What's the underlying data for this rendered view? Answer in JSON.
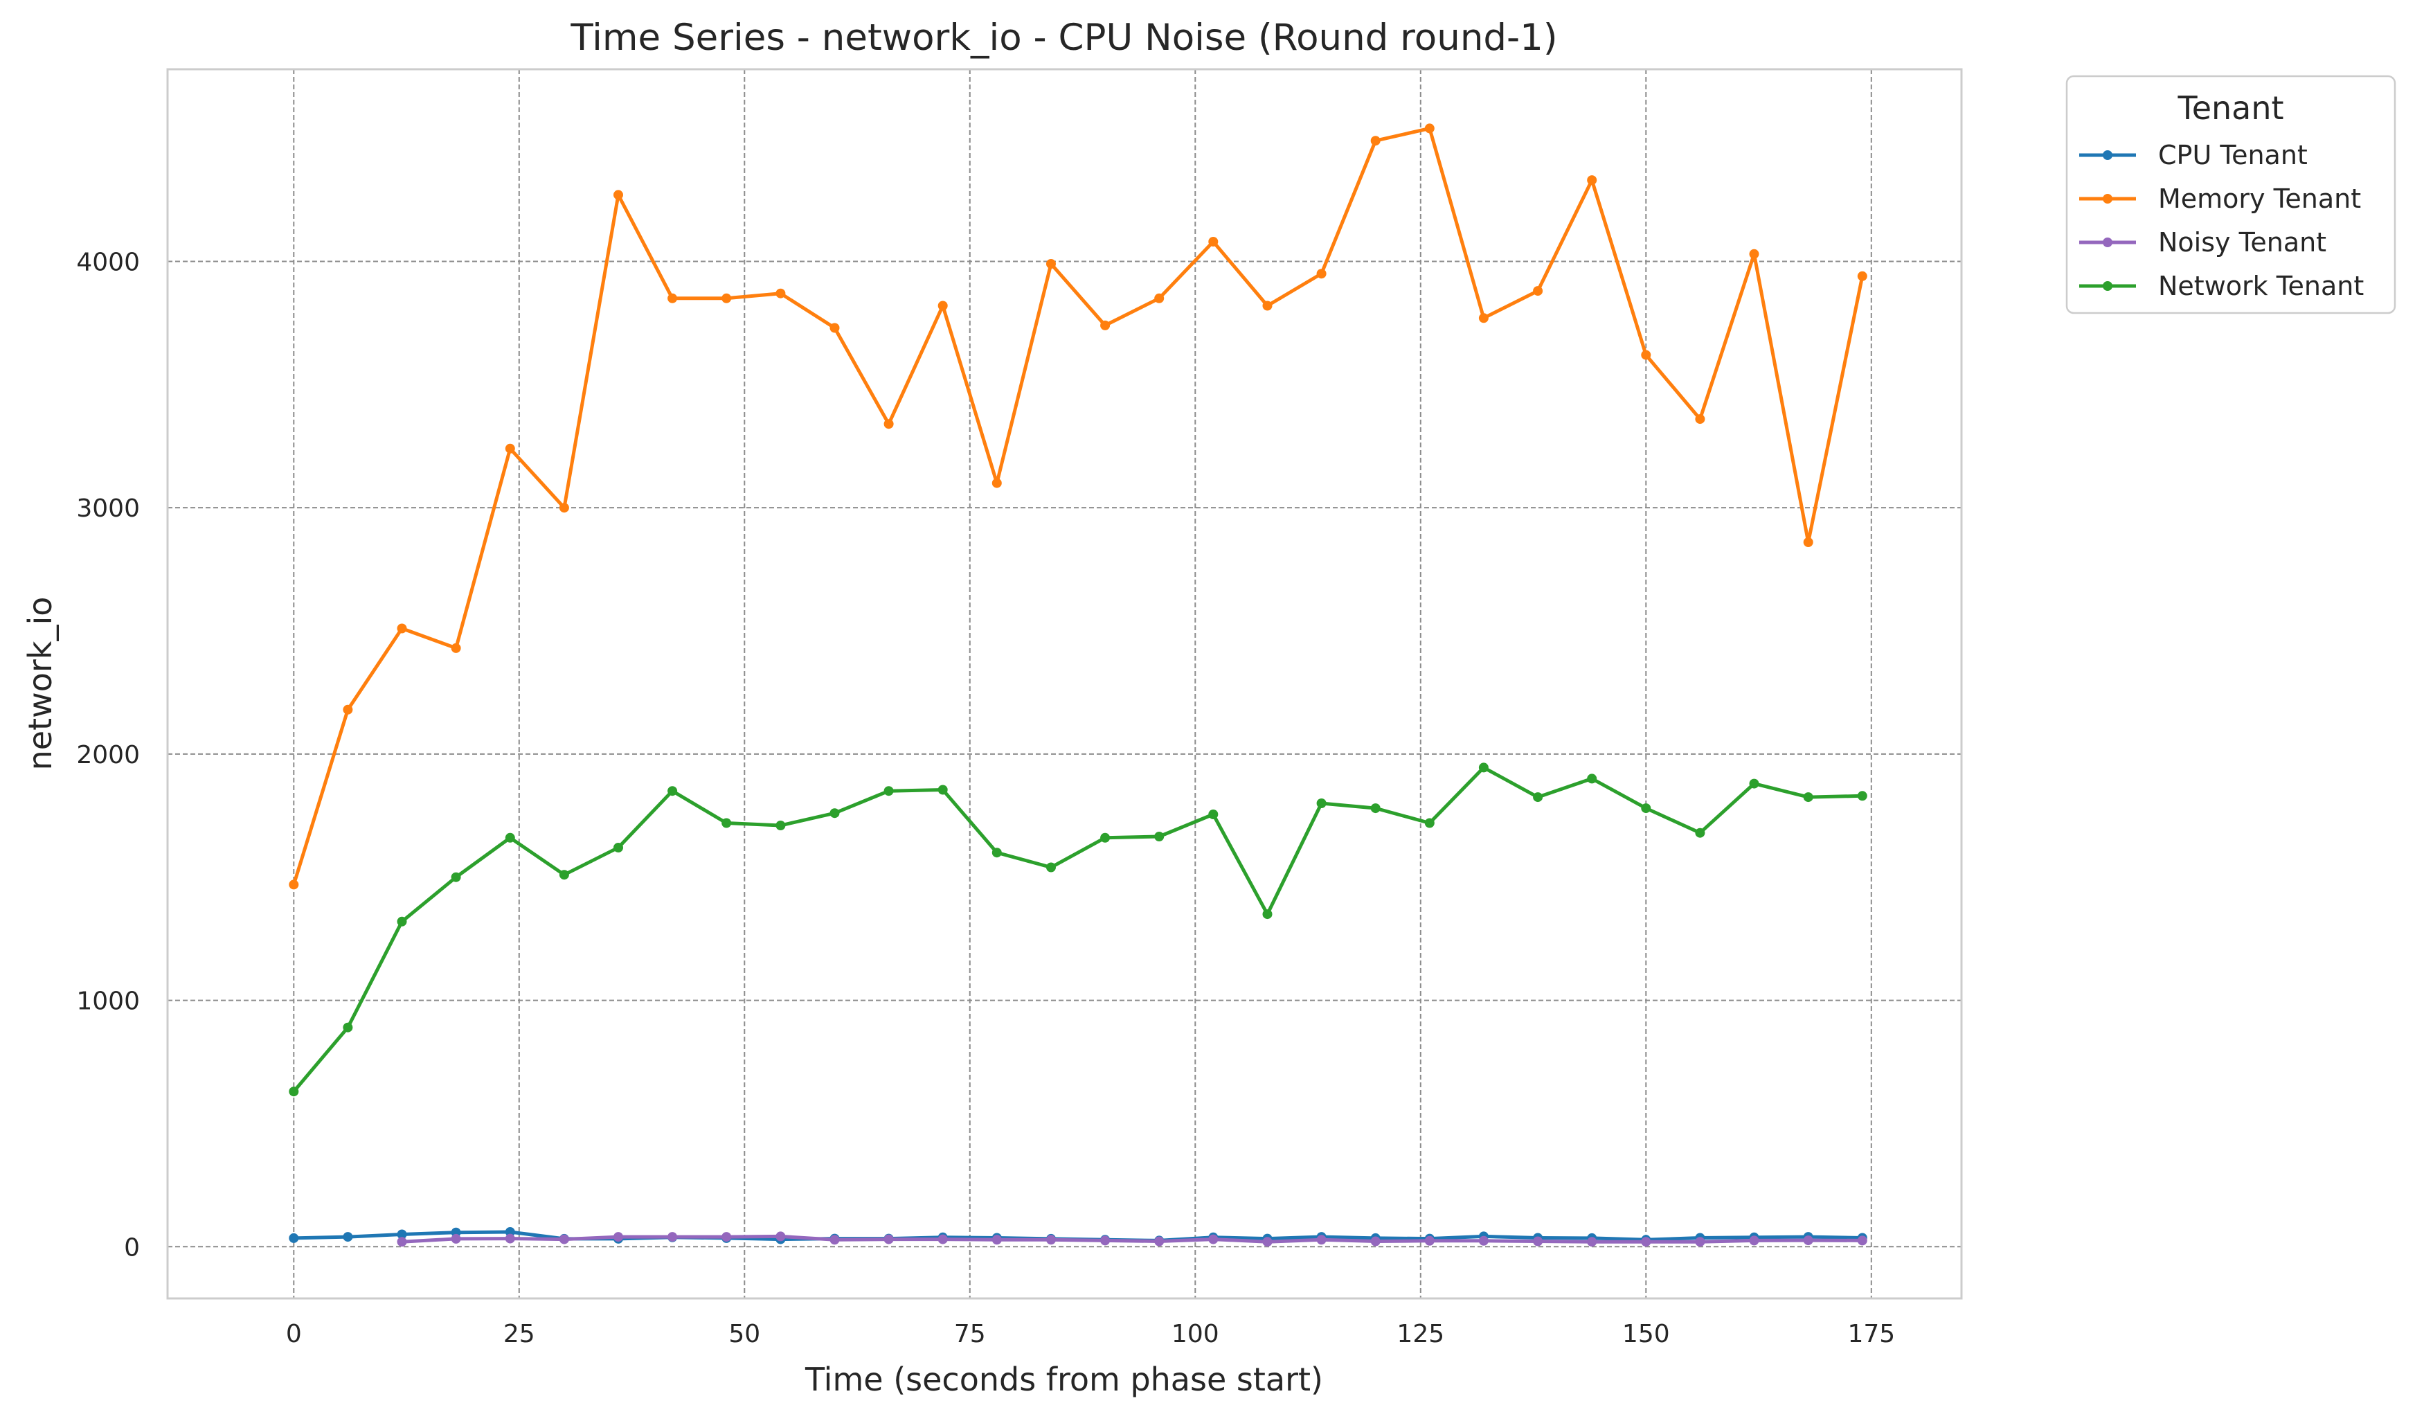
{
  "chart_data": {
    "type": "line",
    "title": "Time Series - network_io - CPU Noise (Round round-1)",
    "xlabel": "Time (seconds from phase start)",
    "ylabel": "network_io",
    "xlim": [
      -14,
      185
    ],
    "ylim": [
      -210,
      4780
    ],
    "x_ticks": [
      0,
      25,
      50,
      75,
      100,
      125,
      150,
      175
    ],
    "y_ticks": [
      0,
      1000,
      2000,
      3000,
      4000
    ],
    "grid": true,
    "legend": {
      "title": "Tenant",
      "placement": "outside-top-right"
    },
    "series": [
      {
        "name": "CPU Tenant",
        "color": "#1f77b4",
        "x": [
          0,
          6,
          12,
          18,
          24,
          30,
          36,
          42,
          48,
          54,
          60,
          66,
          72,
          78,
          84,
          90,
          96,
          102,
          108,
          114,
          120,
          126,
          132,
          138,
          144,
          150,
          156,
          162,
          168,
          174
        ],
        "y": [
          35,
          40,
          50,
          58,
          60,
          32,
          32,
          38,
          35,
          30,
          33,
          33,
          38,
          36,
          32,
          28,
          25,
          38,
          33,
          40,
          35,
          33,
          42,
          36,
          35,
          28,
          36,
          38,
          40,
          36
        ]
      },
      {
        "name": "Memory Tenant",
        "color": "#ff7f0e",
        "x": [
          0,
          6,
          12,
          18,
          24,
          30,
          36,
          42,
          48,
          54,
          60,
          66,
          72,
          78,
          84,
          90,
          96,
          102,
          108,
          114,
          120,
          126,
          132,
          138,
          144,
          150,
          156,
          162,
          168,
          174
        ],
        "y": [
          1470,
          2180,
          2510,
          2430,
          3240,
          3000,
          4270,
          3850,
          3850,
          3870,
          3730,
          3340,
          3820,
          3100,
          3990,
          3740,
          3850,
          4080,
          3820,
          3950,
          4490,
          4540,
          3770,
          3880,
          4330,
          3620,
          3360,
          4030,
          2860,
          3940
        ]
      },
      {
        "name": "Noisy Tenant",
        "color": "#9467bd",
        "x": [
          12,
          18,
          24,
          30,
          36,
          42,
          48,
          54,
          60,
          66,
          72,
          78,
          84,
          90,
          96,
          102,
          108,
          114,
          120,
          126,
          132,
          138,
          144,
          150,
          156,
          162,
          168,
          174
        ],
        "y": [
          20,
          32,
          33,
          30,
          40,
          40,
          40,
          42,
          28,
          30,
          30,
          28,
          28,
          25,
          22,
          30,
          20,
          28,
          22,
          24,
          24,
          22,
          20,
          20,
          20,
          25,
          26,
          25
        ]
      },
      {
        "name": "Network Tenant",
        "color": "#2ca02c",
        "x": [
          0,
          6,
          12,
          18,
          24,
          30,
          36,
          42,
          48,
          54,
          60,
          66,
          72,
          78,
          84,
          90,
          96,
          102,
          108,
          114,
          120,
          126,
          132,
          138,
          144,
          150,
          156,
          162,
          168,
          174
        ],
        "y": [
          630,
          890,
          1320,
          1500,
          1660,
          1510,
          1620,
          1850,
          1720,
          1710,
          1760,
          1850,
          1855,
          1600,
          1540,
          1660,
          1665,
          1755,
          1350,
          1800,
          1780,
          1720,
          1945,
          1825,
          1900,
          1780,
          1680,
          1880,
          1825,
          1830
        ]
      }
    ]
  }
}
